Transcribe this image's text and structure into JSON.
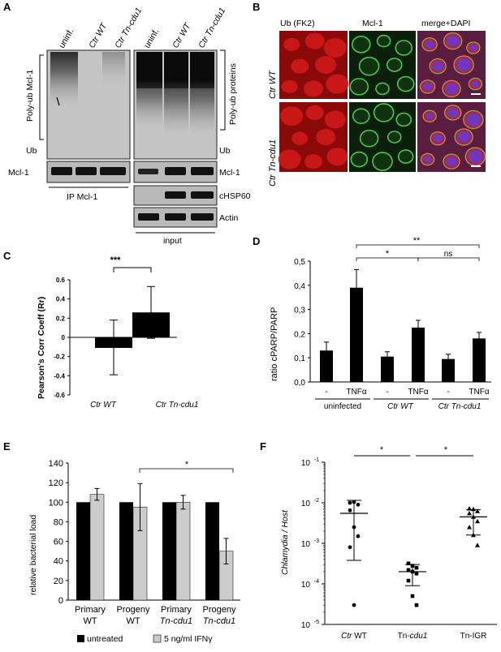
{
  "panels": {
    "A": {
      "letter": "A",
      "lanes_left": [
        "uninf.",
        "Ctr WT",
        "Ctr Tn-cdu1"
      ],
      "lanes_right": [
        "uninf.",
        "Ctr WT",
        "Ctr Tn-cdu1"
      ],
      "polyub_mcl1": "Poly-ub Mcl-1",
      "polyub_proteins": "Poly-ub proteins",
      "ub_left": "Ub",
      "ub_right": "Ub",
      "mcl1_left": "Mcl-1",
      "mcl1_right": "Mcl-1",
      "chsp60": "cHSP60",
      "actin": "Actin",
      "ip_label": "IP Mcl-1",
      "input_label": "input"
    },
    "B": {
      "letter": "B",
      "columns": [
        "Ub (FK2)",
        "Mcl-1",
        "merge+DAPI"
      ],
      "rows": [
        "Ctr WT",
        "Ctr Tn-cdu1"
      ]
    },
    "C": {
      "letter": "C",
      "sig": "***"
    },
    "D": {
      "letter": "D",
      "sig": [
        "*",
        "ns",
        "**"
      ],
      "groups": [
        "uninfected",
        "Ctr WT",
        "Ctr Tn-cdu1"
      ]
    },
    "E": {
      "letter": "E",
      "sig": "*",
      "legend": [
        "untreated",
        "5 ng/ml IFNγ"
      ]
    },
    "F": {
      "letter": "F",
      "sig": [
        "*",
        "*"
      ]
    }
  },
  "chart_data": [
    {
      "panel": "C",
      "type": "bar",
      "ylabel": "Pearson's Corr Coeff (Rr)",
      "categories": [
        "Ctr WT",
        "Ctr Tn-cdu1"
      ],
      "values": [
        -0.11,
        0.26
      ],
      "error": [
        [
          -0.39,
          0.18
        ],
        [
          -0.01,
          0.53
        ]
      ],
      "ylim": [
        -0.6,
        0.6
      ],
      "yticks": [
        "0.6",
        "0.4",
        "0.2",
        "0",
        "-0.2",
        "-0.4",
        "-0.6"
      ]
    },
    {
      "panel": "D",
      "type": "bar",
      "ylabel": "ratio cPARP/PARP",
      "categories": [
        "-",
        "TNFα",
        "-",
        "TNFα",
        "-",
        "TNFα"
      ],
      "values": [
        0.13,
        0.39,
        0.105,
        0.225,
        0.095,
        0.18
      ],
      "error": [
        0.035,
        0.075,
        0.02,
        0.03,
        0.02,
        0.025
      ],
      "ylim": [
        0,
        0.5
      ],
      "yticks": [
        "0,0",
        "0,1",
        "0,2",
        "0,3",
        "0,4",
        "0,5"
      ]
    },
    {
      "panel": "E",
      "type": "bar",
      "ylabel": "relative bacterial load",
      "categories": [
        "Primary WT",
        "Progeny WT",
        "Primary Tn-cdu1",
        "Progeny Tn-cdu1"
      ],
      "series": [
        {
          "name": "untreated",
          "color": "#000000",
          "values": [
            100,
            100,
            100,
            100
          ],
          "error": [
            0,
            0,
            0,
            0
          ]
        },
        {
          "name": "5 ng/ml IFNγ",
          "color": "#cccccc",
          "values": [
            108,
            95,
            100,
            50
          ],
          "error": [
            6,
            24,
            7,
            13
          ]
        }
      ],
      "ylim": [
        0,
        140
      ],
      "yticks": [
        "0",
        "20",
        "40",
        "60",
        "80",
        "100",
        "120",
        "140"
      ]
    },
    {
      "panel": "F",
      "type": "scatter",
      "ylabel": "Chlamydia / Host",
      "scale": "log",
      "categories": [
        "Ctr WT",
        "Tn-cdu1",
        "Tn-IGR"
      ],
      "points": [
        [
          0.01,
          0.0105,
          0.009,
          0.0065,
          0.0025,
          0.0015,
          0.0008,
          3e-05
        ],
        [
          0.00032,
          0.00028,
          0.00025,
          0.00022,
          0.0002,
          0.00018,
          0.00012,
          5e-05,
          3e-05
        ],
        [
          0.0072,
          0.007,
          0.0062,
          0.0055,
          0.0045,
          0.0035,
          0.0025,
          0.0016,
          0.0009
        ]
      ],
      "mean": [
        0.0055,
        0.0002,
        0.0045
      ],
      "sd": [
        [
          0.00038,
          0.0115
        ],
        [
          9e-05,
          0.0003
        ],
        [
          0.0016,
          0.0068
        ]
      ],
      "ylim": [
        1e-05,
        0.1
      ],
      "yticks": [
        "10-1",
        "10-2",
        "10-3",
        "10-4",
        "10-5"
      ]
    }
  ]
}
